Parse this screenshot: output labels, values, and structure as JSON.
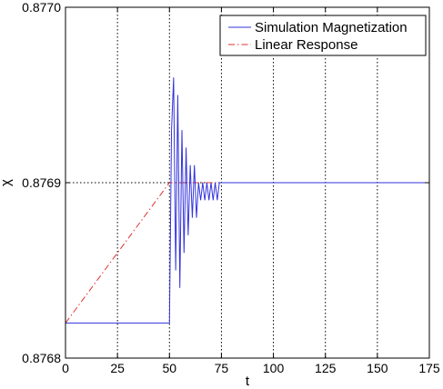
{
  "chart_data": {
    "type": "line",
    "title": "",
    "xlabel": "t",
    "ylabel": "χ",
    "xlim": [
      0,
      175
    ],
    "ylim": [
      0.8768,
      0.877
    ],
    "x_ticks": [
      0,
      25,
      50,
      75,
      100,
      125,
      150,
      175
    ],
    "x_tick_labels": [
      "0",
      "25",
      "50",
      "75",
      "100",
      "125",
      "150",
      "175"
    ],
    "y_ticks": [
      0.8768,
      0.8769,
      0.877
    ],
    "y_tick_labels": [
      "0.8768",
      "0.8769",
      "0.8770"
    ],
    "grid": "vertical dotted at x ticks; horizontal dotted at 0.8769",
    "legend_position": "top-right",
    "series": [
      {
        "name": "Simulation Magnetization",
        "color": "#3333dd",
        "style": "solid",
        "x": [
          0,
          1,
          2,
          3,
          4,
          5,
          6,
          7,
          8,
          9,
          10,
          11,
          12,
          13,
          14,
          15,
          16,
          17,
          18,
          19,
          20,
          21,
          22,
          23,
          24,
          25,
          26,
          27,
          28,
          29,
          30,
          31,
          32,
          33,
          34,
          35,
          36,
          37,
          38,
          39,
          40,
          41,
          42,
          43,
          44,
          45,
          46,
          47,
          48,
          49,
          50,
          51,
          52,
          53,
          54,
          55,
          56,
          57,
          58,
          59,
          60,
          61,
          62,
          63,
          64,
          65,
          66,
          67,
          68,
          69,
          70,
          71,
          72,
          73,
          74,
          75,
          76,
          77,
          78,
          79,
          80,
          81,
          82,
          83,
          84,
          85,
          86,
          87,
          88,
          89,
          90,
          91,
          92,
          93,
          94,
          95,
          96,
          97,
          98,
          99,
          100,
          101,
          102,
          103,
          104,
          105,
          106,
          107,
          108,
          109,
          110,
          111,
          112,
          113,
          114,
          115,
          116,
          117,
          118,
          119,
          120,
          121,
          122,
          123,
          124,
          125,
          126,
          127,
          128,
          129,
          130,
          131,
          132,
          133,
          134,
          135,
          136,
          137,
          138,
          139,
          140,
          141,
          142,
          143,
          144,
          145,
          146,
          147,
          148,
          149,
          150,
          151,
          152,
          153,
          154,
          155,
          156,
          157,
          158,
          159,
          160,
          161,
          162,
          163,
          164,
          165,
          166,
          167,
          168,
          169,
          170,
          171,
          172,
          173,
          174,
          175
        ],
        "values": [
          0.87682,
          0.87682,
          0.87682,
          0.87682,
          0.87682,
          0.87682,
          0.87682,
          0.87682,
          0.87682,
          0.87682,
          0.87682,
          0.87682,
          0.87682,
          0.87682,
          0.87682,
          0.87682,
          0.87682,
          0.87682,
          0.87682,
          0.87682,
          0.87682,
          0.87682,
          0.87682,
          0.87682,
          0.87682,
          0.87682,
          0.87682,
          0.87682,
          0.87682,
          0.87682,
          0.87682,
          0.87682,
          0.87682,
          0.87682,
          0.87682,
          0.87682,
          0.87682,
          0.87682,
          0.87682,
          0.87682,
          0.87682,
          0.87682,
          0.87682,
          0.87682,
          0.87682,
          0.87682,
          0.87682,
          0.87682,
          0.87682,
          0.87682,
          0.87682,
          0.87693,
          0.87696,
          0.87685,
          0.87695,
          0.87684,
          0.87693,
          0.87686,
          0.87692,
          0.87687,
          0.87691,
          0.87688,
          0.87691,
          0.87688,
          0.8769,
          0.87689,
          0.8769,
          0.87689,
          0.8769,
          0.87689,
          0.8769,
          0.87689,
          0.8769,
          0.87689,
          0.8769,
          0.8769,
          0.8769,
          0.8769,
          0.8769,
          0.8769,
          0.8769,
          0.8769,
          0.8769,
          0.8769,
          0.8769,
          0.8769,
          0.8769,
          0.8769,
          0.8769,
          0.8769,
          0.8769,
          0.8769,
          0.8769,
          0.8769,
          0.8769,
          0.8769,
          0.8769,
          0.8769,
          0.8769,
          0.8769,
          0.8769,
          0.8769,
          0.8769,
          0.8769,
          0.8769,
          0.8769,
          0.8769,
          0.8769,
          0.8769,
          0.8769,
          0.8769,
          0.8769,
          0.8769,
          0.8769,
          0.8769,
          0.8769,
          0.8769,
          0.8769,
          0.8769,
          0.8769,
          0.8769,
          0.8769,
          0.8769,
          0.8769,
          0.8769,
          0.8769,
          0.8769,
          0.8769,
          0.8769,
          0.8769,
          0.8769,
          0.8769,
          0.8769,
          0.8769,
          0.8769,
          0.8769,
          0.8769,
          0.8769,
          0.8769,
          0.8769,
          0.8769,
          0.8769,
          0.8769,
          0.8769,
          0.8769,
          0.8769,
          0.8769,
          0.8769,
          0.8769,
          0.8769,
          0.8769,
          0.8769,
          0.8769,
          0.8769,
          0.8769,
          0.8769,
          0.8769,
          0.8769,
          0.8769,
          0.8769,
          0.8769,
          0.8769,
          0.8769,
          0.8769,
          0.8769,
          0.8769,
          0.8769,
          0.8769,
          0.8769,
          0.8769,
          0.8769,
          0.8769,
          0.8769,
          0.8769,
          0.8769,
          0.8769
        ]
      },
      {
        "name": "Linear Response",
        "color": "#dd3333",
        "style": "dash-dot",
        "x": [
          0,
          50,
          175
        ],
        "values": [
          0.87682,
          0.8769,
          0.8769
        ]
      }
    ]
  }
}
